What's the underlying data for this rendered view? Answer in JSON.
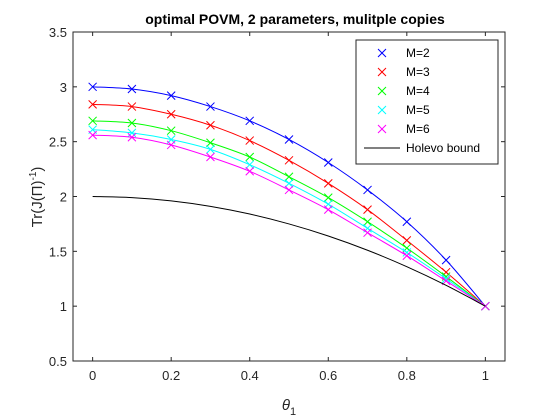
{
  "chart_data": {
    "type": "line",
    "title": "optimal POVM, 2 parameters, mulitple copies",
    "xlabel": "θ",
    "xlabel_sub": "1",
    "ylabel_main": "Tr(J(Π)",
    "ylabel_sup": "-1",
    "ylabel_close": ")",
    "xlim": [
      -0.05,
      1.05
    ],
    "ylim": [
      0.5,
      3.5
    ],
    "xticks": [
      0,
      0.2,
      0.4,
      0.6,
      0.8,
      1
    ],
    "xtick_labels": [
      "0",
      "0.2",
      "0.4",
      "0.6",
      "0.8",
      "1"
    ],
    "yticks": [
      0.5,
      1,
      1.5,
      2,
      2.5,
      3,
      3.5
    ],
    "ytick_labels": [
      "0.5",
      "1",
      "1.5",
      "2",
      "2.5",
      "3",
      "3.5"
    ],
    "grid": false,
    "legend_position": "top-right",
    "marker_x": [
      0,
      0.1,
      0.2,
      0.3,
      0.4,
      0.5,
      0.6,
      0.7,
      0.8,
      0.9,
      1.0
    ],
    "series": [
      {
        "name": "M=2",
        "color": "#0000ff",
        "marker": "x",
        "values": [
          3.0,
          2.98,
          2.92,
          2.82,
          2.69,
          2.52,
          2.31,
          2.06,
          1.77,
          1.42,
          1.0
        ]
      },
      {
        "name": "M=3",
        "color": "#ff0000",
        "marker": "x",
        "values": [
          2.84,
          2.82,
          2.75,
          2.65,
          2.51,
          2.33,
          2.12,
          1.88,
          1.6,
          1.31,
          1.0
        ]
      },
      {
        "name": "M=4",
        "color": "#00ff00",
        "marker": "x",
        "values": [
          2.69,
          2.67,
          2.6,
          2.49,
          2.36,
          2.18,
          1.99,
          1.77,
          1.53,
          1.27,
          1.0
        ]
      },
      {
        "name": "M=5",
        "color": "#00ffff",
        "marker": "x",
        "values": [
          2.61,
          2.58,
          2.52,
          2.43,
          2.29,
          2.12,
          1.93,
          1.71,
          1.49,
          1.25,
          1.0
        ]
      },
      {
        "name": "M=6",
        "color": "#ff00ff",
        "marker": "x",
        "values": [
          2.56,
          2.54,
          2.47,
          2.36,
          2.23,
          2.06,
          1.88,
          1.67,
          1.46,
          1.23,
          1.0
        ]
      },
      {
        "name": "Holevo bound",
        "color": "#000000",
        "marker": "none",
        "values": [
          2.0,
          1.99,
          1.96,
          1.91,
          1.84,
          1.75,
          1.64,
          1.51,
          1.36,
          1.19,
          1.0
        ]
      }
    ]
  }
}
